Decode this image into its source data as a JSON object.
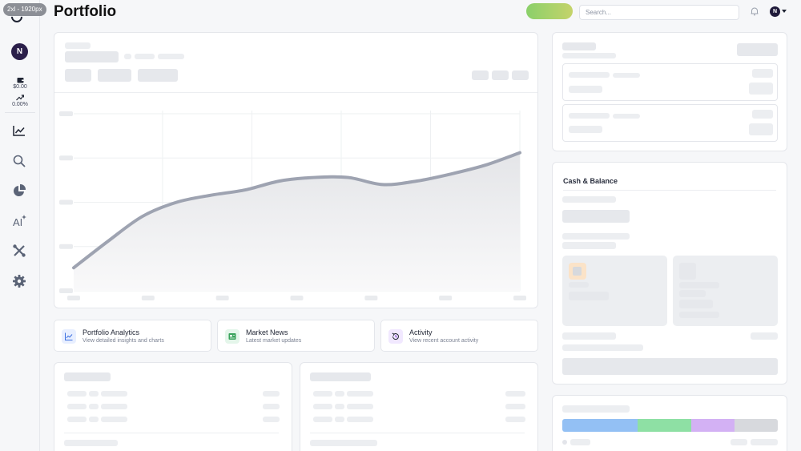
{
  "badge": "2xl - 1920px",
  "header": {
    "title": "Portfolio",
    "search_placeholder": "Search...",
    "user_initial": "N"
  },
  "sidebar": {
    "avatar_initial": "N",
    "cash_value": "$0.00",
    "change_value": "0.00%",
    "nav": [
      {
        "name": "analytics-icon"
      },
      {
        "name": "search-icon"
      },
      {
        "name": "pie-chart-icon"
      },
      {
        "name": "ai-icon"
      },
      {
        "name": "tools-icon"
      },
      {
        "name": "settings-icon"
      }
    ]
  },
  "quick_links": [
    {
      "title": "Portfolio Analytics",
      "subtitle": "View detailed insights and charts",
      "icon": "analytics-icon",
      "color": "#3b6fe0",
      "bg": "#e8efff"
    },
    {
      "title": "Market News",
      "subtitle": "Latest market updates",
      "icon": "news-icon",
      "color": "#3aa35c",
      "bg": "#e4f6ea"
    },
    {
      "title": "Activity",
      "subtitle": "View recent account activity",
      "icon": "history-icon",
      "color": "#7a3fd0",
      "bg": "#f1e8ff"
    }
  ],
  "cash_panel": {
    "title": "Cash & Balance"
  },
  "colors": {
    "accent": "#1f1a3a",
    "chart_line": "#9ea3b1",
    "alloc": [
      "#93c0f4",
      "#8ee0a4",
      "#d3b1f4",
      "#d7d9dd"
    ]
  },
  "chart_data": {
    "type": "area",
    "x": [
      0,
      1,
      2,
      3,
      4,
      5,
      6,
      7,
      8,
      9,
      10,
      11,
      12,
      13
    ],
    "y": [
      13,
      28,
      42,
      50,
      54,
      57,
      62,
      64,
      64,
      60,
      62,
      66,
      71,
      78
    ],
    "ylim": [
      0,
      100
    ]
  }
}
